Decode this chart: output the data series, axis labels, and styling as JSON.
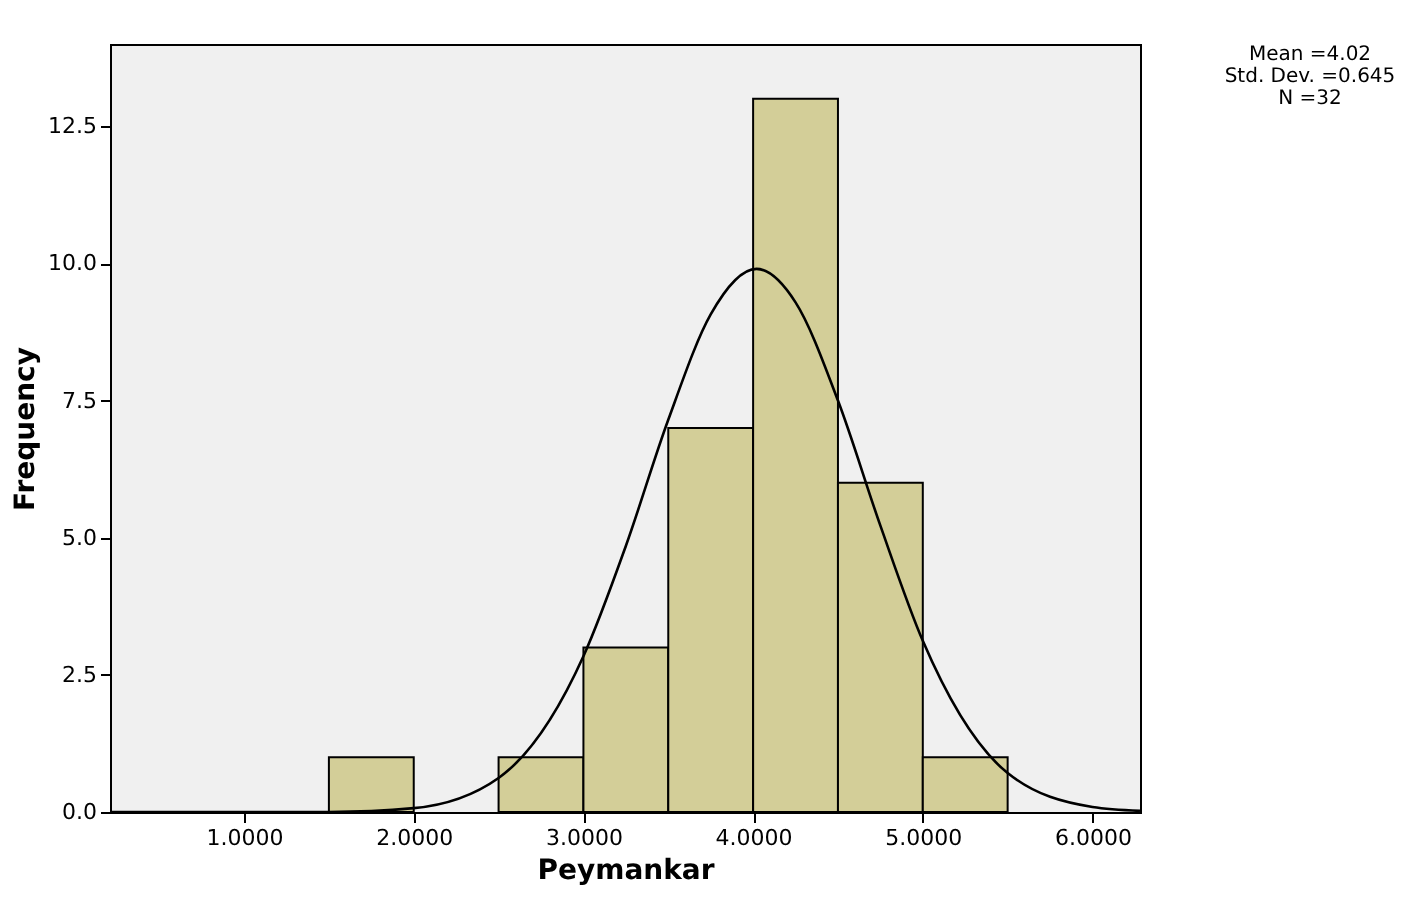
{
  "chart_data": {
    "type": "histogram",
    "xlabel": "Peymankar",
    "ylabel": "Frequency",
    "bins": [
      1.5,
      2.0,
      2.5,
      3.0,
      3.5,
      4.0,
      4.5,
      5.0,
      5.5
    ],
    "values": [
      1,
      0,
      1,
      3,
      7,
      13,
      6,
      1
    ],
    "color": "#d3ce98",
    "series": [
      {
        "type": "line",
        "color": "#000000",
        "x": [
          0.21,
          1.0,
          1.5,
          2.0,
          2.5,
          3.0,
          3.25,
          3.5,
          3.75,
          4.02,
          4.25,
          4.5,
          4.75,
          5.0,
          5.5,
          6.0,
          6.28
        ],
        "values": [
          0,
          0,
          0,
          0.07,
          0.62,
          2.84,
          4.85,
          7.15,
          9.07,
          9.9,
          9.29,
          7.5,
          5.22,
          3.12,
          0.71,
          0.09,
          0.02
        ]
      }
    ],
    "xlim": [
      0.21,
      6.28
    ],
    "xticks": [
      {
        "value": 1,
        "label": "1.0000"
      },
      {
        "value": 2,
        "label": "2.0000"
      },
      {
        "value": 3,
        "label": "3.0000"
      },
      {
        "value": 4,
        "label": "4.0000"
      },
      {
        "value": 5,
        "label": "5.0000"
      },
      {
        "value": 6,
        "label": "6.0000"
      }
    ],
    "ylim": [
      0,
      14
    ],
    "yticks": [
      {
        "value": 0,
        "label": "0.0"
      },
      2.5,
      {
        "value": 5,
        "label": "5.0"
      },
      7.5,
      {
        "value": 10,
        "label": "10.0"
      },
      12.5
    ],
    "annotations": [
      "Mean =4.02",
      "Std. Dev. =0.645",
      "N =32"
    ],
    "grid": false,
    "marker": "none",
    "line_style": "solid"
  }
}
